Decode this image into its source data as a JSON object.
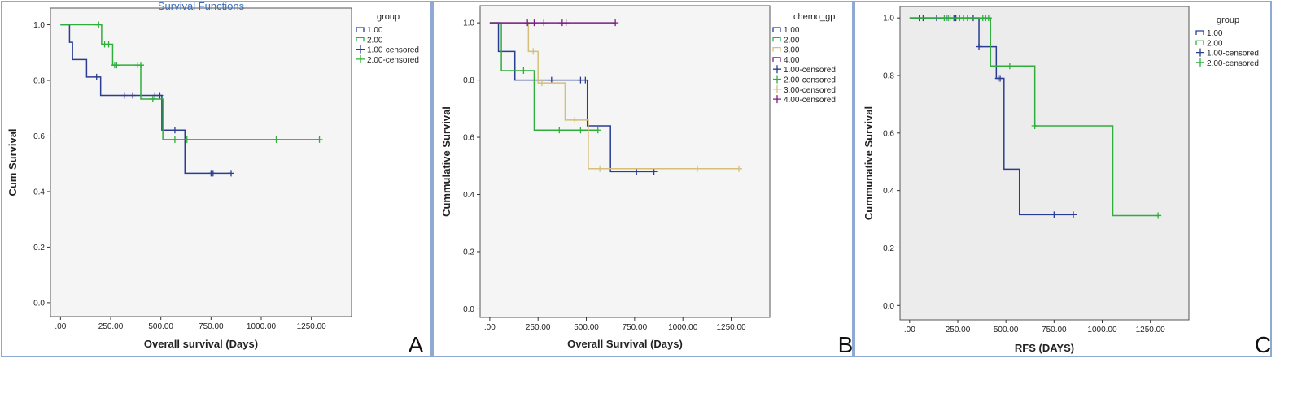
{
  "colors": {
    "blue": "#2b3d93",
    "green": "#2fae3b",
    "tan": "#d4c07a",
    "purple": "#7b1c83",
    "plot_bg": "#f5f5f5",
    "plot_bg_c": "#ececec",
    "panel_border": "#8eaad3"
  },
  "chart_data": [
    {
      "type": "line",
      "panel_label": "A",
      "title": "Survival Functions",
      "xlabel": "Overall survival (Days)",
      "ylabel": "Cum Survival",
      "xlim": [
        -50,
        1450
      ],
      "ylim": [
        -0.05,
        1.06
      ],
      "xticks": [
        0,
        250,
        500,
        750,
        1000,
        1250
      ],
      "xtick_labels": [
        ".00",
        "250.00",
        "500.00",
        "750.00",
        "1000.00",
        "1250.00"
      ],
      "yticks": [
        0,
        0.2,
        0.4,
        0.6,
        0.8,
        1.0
      ],
      "ytick_labels": [
        "0.0",
        "0.2",
        "0.4",
        "0.6",
        "0.8",
        "1.0"
      ],
      "grid": false,
      "legend_title": "group",
      "legend": [
        {
          "label": "1.00",
          "kind": "line",
          "color": "blue"
        },
        {
          "label": "2.00",
          "kind": "line",
          "color": "green"
        },
        {
          "label": "1.00-censored",
          "kind": "cross",
          "color": "blue"
        },
        {
          "label": "2.00-censored",
          "kind": "cross",
          "color": "green"
        }
      ],
      "series": [
        {
          "name": "1.00",
          "color": "blue",
          "steps": [
            [
              0,
              1.0
            ],
            [
              45,
              0.937
            ],
            [
              60,
              0.875
            ],
            [
              130,
              0.812
            ],
            [
              200,
              0.746
            ],
            [
              505,
              0.621
            ],
            [
              620,
              0.466
            ],
            [
              850,
              0.466
            ]
          ],
          "censored": [
            [
              180,
              0.812
            ],
            [
              320,
              0.746
            ],
            [
              360,
              0.746
            ],
            [
              470,
              0.746
            ],
            [
              495,
              0.746
            ],
            [
              570,
              0.621
            ],
            [
              750,
              0.466
            ],
            [
              760,
              0.466
            ],
            [
              850,
              0.466
            ]
          ]
        },
        {
          "name": "2.00",
          "color": "green",
          "steps": [
            [
              0,
              1.0
            ],
            [
              205,
              0.93
            ],
            [
              260,
              0.855
            ],
            [
              400,
              0.733
            ],
            [
              510,
              0.587
            ],
            [
              1290,
              0.587
            ]
          ],
          "censored": [
            [
              190,
              1.0
            ],
            [
              220,
              0.93
            ],
            [
              240,
              0.93
            ],
            [
              270,
              0.855
            ],
            [
              280,
              0.855
            ],
            [
              385,
              0.855
            ],
            [
              400,
              0.855
            ],
            [
              460,
              0.733
            ],
            [
              570,
              0.587
            ],
            [
              630,
              0.587
            ],
            [
              1075,
              0.587
            ],
            [
              1290,
              0.587
            ]
          ]
        }
      ]
    },
    {
      "type": "line",
      "panel_label": "B",
      "title": "",
      "xlabel": "Overall Survival (Days)",
      "ylabel": "Cummulative Survival",
      "xlim": [
        -50,
        1450
      ],
      "ylim": [
        -0.03,
        1.06
      ],
      "xticks": [
        0,
        250,
        500,
        750,
        1000,
        1250
      ],
      "xtick_labels": [
        ".00",
        "250.00",
        "500.00",
        "750.00",
        "1000.00",
        "1250.00"
      ],
      "yticks": [
        0,
        0.2,
        0.4,
        0.6,
        0.8,
        1.0
      ],
      "ytick_labels": [
        "0.0",
        "0.2",
        "0.4",
        "0.6",
        "0.8",
        "1.0"
      ],
      "grid": false,
      "legend_title": "chemo_gp",
      "legend": [
        {
          "label": "1.00",
          "kind": "line",
          "color": "blue"
        },
        {
          "label": "2.00",
          "kind": "line",
          "color": "green"
        },
        {
          "label": "3.00",
          "kind": "line",
          "color": "tan"
        },
        {
          "label": "4.00",
          "kind": "line",
          "color": "purple"
        },
        {
          "label": "1.00-censored",
          "kind": "cross",
          "color": "blue"
        },
        {
          "label": "2.00-censored",
          "kind": "cross",
          "color": "green"
        },
        {
          "label": "3.00-censored",
          "kind": "cross",
          "color": "tan"
        },
        {
          "label": "4.00-censored",
          "kind": "cross",
          "color": "purple"
        }
      ],
      "series": [
        {
          "name": "1.00",
          "color": "blue",
          "steps": [
            [
              0,
              1.0
            ],
            [
              45,
              0.9
            ],
            [
              130,
              0.8
            ],
            [
              505,
              0.64
            ],
            [
              625,
              0.48
            ],
            [
              850,
              0.48
            ]
          ],
          "censored": [
            [
              320,
              0.8
            ],
            [
              470,
              0.8
            ],
            [
              495,
              0.8
            ],
            [
              760,
              0.48
            ],
            [
              850,
              0.48
            ]
          ]
        },
        {
          "name": "2.00",
          "color": "green",
          "steps": [
            [
              0,
              1.0
            ],
            [
              60,
              0.833
            ],
            [
              230,
              0.625
            ],
            [
              560,
              0.625
            ]
          ],
          "censored": [
            [
              175,
              0.833
            ],
            [
              360,
              0.625
            ],
            [
              470,
              0.625
            ],
            [
              560,
              0.625
            ]
          ]
        },
        {
          "name": "3.00",
          "color": "tan",
          "steps": [
            [
              0,
              1.0
            ],
            [
              200,
              0.9
            ],
            [
              250,
              0.79
            ],
            [
              390,
              0.66
            ],
            [
              510,
              0.49
            ],
            [
              1290,
              0.49
            ]
          ],
          "censored": [
            [
              225,
              0.9
            ],
            [
              270,
              0.79
            ],
            [
              440,
              0.66
            ],
            [
              570,
              0.49
            ],
            [
              1075,
              0.49
            ],
            [
              1290,
              0.49
            ]
          ]
        },
        {
          "name": "4.00",
          "color": "purple",
          "steps": [
            [
              0,
              1.0
            ],
            [
              650,
              1.0
            ]
          ],
          "censored": [
            [
              195,
              1.0
            ],
            [
              230,
              1.0
            ],
            [
              280,
              1.0
            ],
            [
              375,
              1.0
            ],
            [
              395,
              1.0
            ],
            [
              650,
              1.0
            ]
          ]
        }
      ]
    },
    {
      "type": "line",
      "panel_label": "C",
      "title": "",
      "xlabel": "RFS (DAYS)",
      "ylabel": "Cummunative Survival",
      "xlim": [
        -50,
        1450
      ],
      "ylim": [
        -0.05,
        1.04
      ],
      "xticks": [
        0,
        250,
        500,
        750,
        1000,
        1250
      ],
      "xtick_labels": [
        ".00",
        "250.00",
        "500.00",
        "750.00",
        "1000.00",
        "1250.00"
      ],
      "yticks": [
        0,
        0.2,
        0.4,
        0.6,
        0.8,
        1.0
      ],
      "ytick_labels": [
        "0.0",
        "0.2",
        "0.4",
        "0.6",
        "0.8",
        "1.0"
      ],
      "grid": false,
      "legend_title": "group",
      "legend": [
        {
          "label": "1.00",
          "kind": "line",
          "color": "blue"
        },
        {
          "label": "2.00",
          "kind": "line",
          "color": "green"
        },
        {
          "label": "1.00-censored",
          "kind": "cross",
          "color": "blue"
        },
        {
          "label": "2.00-censored",
          "kind": "cross",
          "color": "green"
        }
      ],
      "series": [
        {
          "name": "1.00",
          "color": "blue",
          "steps": [
            [
              0,
              1.0
            ],
            [
              360,
              0.9
            ],
            [
              450,
              0.79
            ],
            [
              490,
              0.474
            ],
            [
              570,
              0.316
            ],
            [
              850,
              0.316
            ]
          ],
          "censored": [
            [
              50,
              1.0
            ],
            [
              70,
              1.0
            ],
            [
              140,
              1.0
            ],
            [
              190,
              1.0
            ],
            [
              230,
              1.0
            ],
            [
              240,
              1.0
            ],
            [
              330,
              1.0
            ],
            [
              360,
              0.9
            ],
            [
              460,
              0.79
            ],
            [
              470,
              0.79
            ],
            [
              750,
              0.316
            ],
            [
              850,
              0.316
            ]
          ]
        },
        {
          "name": "2.00",
          "color": "green",
          "steps": [
            [
              0,
              1.0
            ],
            [
              420,
              0.833
            ],
            [
              650,
              0.625
            ],
            [
              1055,
              0.313
            ],
            [
              1290,
              0.313
            ]
          ],
          "censored": [
            [
              180,
              1.0
            ],
            [
              200,
              1.0
            ],
            [
              210,
              1.0
            ],
            [
              260,
              1.0
            ],
            [
              280,
              1.0
            ],
            [
              300,
              1.0
            ],
            [
              380,
              1.0
            ],
            [
              395,
              1.0
            ],
            [
              410,
              1.0
            ],
            [
              520,
              0.833
            ],
            [
              650,
              0.625
            ],
            [
              1290,
              0.313
            ]
          ]
        }
      ]
    }
  ]
}
